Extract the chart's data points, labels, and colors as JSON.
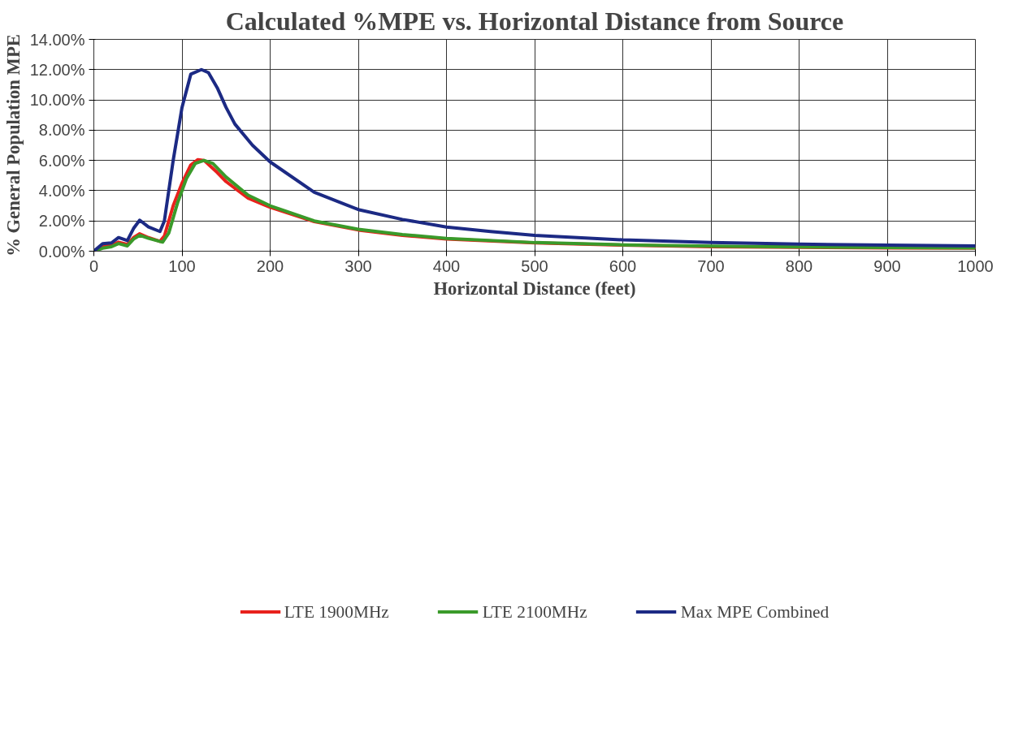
{
  "chart_data": {
    "type": "line",
    "title": "Calculated %MPE vs. Horizontal Distance from Source",
    "xlabel": "Horizontal Distance (feet)",
    "ylabel": "% General Population MPE",
    "xlim": [
      0,
      1000
    ],
    "xticks": [
      0,
      100,
      200,
      300,
      400,
      500,
      600,
      700,
      800,
      900,
      1000
    ],
    "ylim": [
      0,
      14
    ],
    "yticks": [
      {
        "value": 0,
        "label": "0.00%"
      },
      {
        "value": 2,
        "label": "2.00%"
      },
      {
        "value": 4,
        "label": "4.00%"
      },
      {
        "value": 6,
        "label": "6.00%"
      },
      {
        "value": 8,
        "label": "8.00%"
      },
      {
        "value": 10,
        "label": "10.00%"
      },
      {
        "value": 12,
        "label": "12.00%"
      },
      {
        "value": 14,
        "label": "14.00%"
      }
    ],
    "grid": true,
    "legend": "bottom",
    "marker": "none",
    "line_style": "solid",
    "series": [
      {
        "name": "LTE 1900MHz",
        "color": "#e8211c",
        "x": [
          0,
          10,
          20,
          28,
          38,
          45,
          52,
          62,
          75,
          80,
          90,
          100,
          110,
          118,
          125,
          140,
          150,
          175,
          200,
          250,
          300,
          350,
          400,
          500,
          600,
          700,
          800,
          900,
          1000
        ],
        "values": [
          0,
          0.3,
          0.4,
          0.6,
          0.45,
          0.9,
          1.15,
          0.9,
          0.65,
          1.0,
          3,
          4.5,
          5.7,
          6.05,
          6.0,
          5.2,
          4.6,
          3.5,
          2.9,
          1.95,
          1.4,
          1.05,
          0.8,
          0.55,
          0.4,
          0.3,
          0.26,
          0.22,
          0.2
        ]
      },
      {
        "name": "LTE 2100MHz",
        "color": "#3a9a2a",
        "x": [
          0,
          10,
          20,
          28,
          38,
          45,
          52,
          62,
          78,
          85,
          95,
          105,
          115,
          125,
          135,
          150,
          175,
          200,
          250,
          300,
          350,
          400,
          500,
          600,
          700,
          800,
          900,
          1000
        ],
        "values": [
          0,
          0.2,
          0.3,
          0.5,
          0.35,
          0.8,
          1.05,
          0.85,
          0.6,
          1.2,
          3.2,
          4.8,
          5.8,
          6.0,
          5.8,
          4.9,
          3.7,
          3.0,
          2.0,
          1.45,
          1.1,
          0.85,
          0.57,
          0.42,
          0.33,
          0.28,
          0.24,
          0.22
        ]
      },
      {
        "name": "Max MPE Combined",
        "color": "#1c2a84",
        "x": [
          0,
          10,
          20,
          28,
          38,
          45,
          52,
          62,
          75,
          80,
          90,
          100,
          110,
          122,
          130,
          140,
          150,
          160,
          180,
          200,
          250,
          300,
          350,
          400,
          450,
          500,
          600,
          700,
          800,
          900,
          1000
        ],
        "values": [
          0,
          0.5,
          0.55,
          0.9,
          0.7,
          1.5,
          2.05,
          1.6,
          1.3,
          2.0,
          6,
          9.5,
          11.7,
          12.0,
          11.8,
          10.8,
          9.5,
          8.4,
          7.0,
          5.9,
          3.9,
          2.75,
          2.1,
          1.6,
          1.3,
          1.05,
          0.75,
          0.58,
          0.47,
          0.4,
          0.35
        ]
      }
    ]
  }
}
